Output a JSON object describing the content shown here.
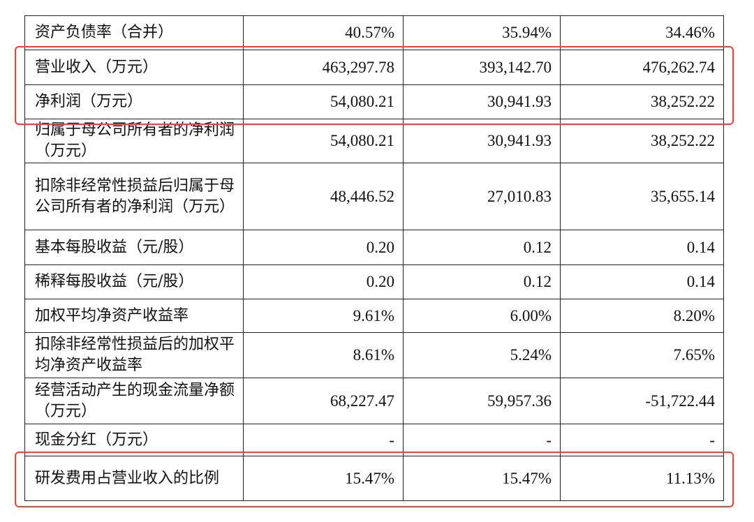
{
  "table": {
    "rows": [
      {
        "label": "资产负债率（合并）",
        "values": [
          "40.57%",
          "35.94%",
          "34.46%"
        ]
      },
      {
        "label": "营业收入（万元）",
        "values": [
          "463,297.78",
          "393,142.70",
          "476,262.74"
        ]
      },
      {
        "label": "净利润（万元）",
        "values": [
          "54,080.21",
          "30,941.93",
          "38,252.22"
        ]
      },
      {
        "label": "归属于母公司所有者的净利润（万元）",
        "values": [
          "54,080.21",
          "30,941.93",
          "38,252.22"
        ]
      },
      {
        "label": "扣除非经常性损益后归属于母公司所有者的净利润（万元）",
        "values": [
          "48,446.52",
          "27,010.83",
          "35,655.14"
        ]
      },
      {
        "label": "基本每股收益（元/股）",
        "values": [
          "0.20",
          "0.12",
          "0.14"
        ]
      },
      {
        "label": "稀释每股收益（元/股）",
        "values": [
          "0.20",
          "0.12",
          "0.14"
        ]
      },
      {
        "label": "加权平均净资产收益率",
        "values": [
          "9.61%",
          "6.00%",
          "8.20%"
        ]
      },
      {
        "label": "扣除非经常性损益后的加权平均净资产收益率",
        "values": [
          "8.61%",
          "5.24%",
          "7.65%"
        ]
      },
      {
        "label": "经营活动产生的现金流量净额（万元）",
        "values": [
          "68,227.47",
          "59,957.36",
          "-51,722.44"
        ]
      },
      {
        "label": "现金分红（万元）",
        "values": [
          "-",
          "-",
          "-"
        ]
      },
      {
        "label": "研发费用占营业收入的比例",
        "values": [
          "15.47%",
          "15.47%",
          "11.13%"
        ]
      }
    ]
  },
  "highlight_color": "#e8463c"
}
